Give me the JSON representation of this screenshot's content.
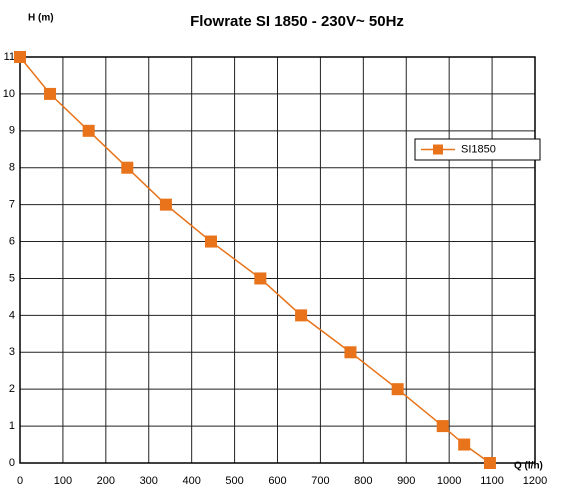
{
  "chart_data": {
    "type": "line",
    "title": "Flowrate SI 1850 - 230V~ 50Hz",
    "y_label": "H (m)",
    "x_label": "Q (l/h)",
    "x": [
      0,
      70,
      160,
      250,
      340,
      445,
      560,
      655,
      770,
      880,
      985,
      1035,
      1095
    ],
    "series": [
      {
        "name": "SI1850",
        "color": "#e8731a",
        "values": [
          11,
          10,
          9,
          8,
          7,
          6,
          5,
          4,
          3,
          2,
          1,
          0.5,
          0
        ]
      }
    ],
    "xlim": [
      0,
      1200
    ],
    "xticks": [
      0,
      100,
      200,
      300,
      400,
      500,
      600,
      700,
      800,
      900,
      1000,
      1100,
      1200
    ],
    "ylim": [
      0,
      11
    ],
    "yticks": [
      0,
      1,
      2,
      3,
      4,
      5,
      6,
      7,
      8,
      9,
      10,
      11
    ],
    "grid": true,
    "legend": "top-right"
  }
}
